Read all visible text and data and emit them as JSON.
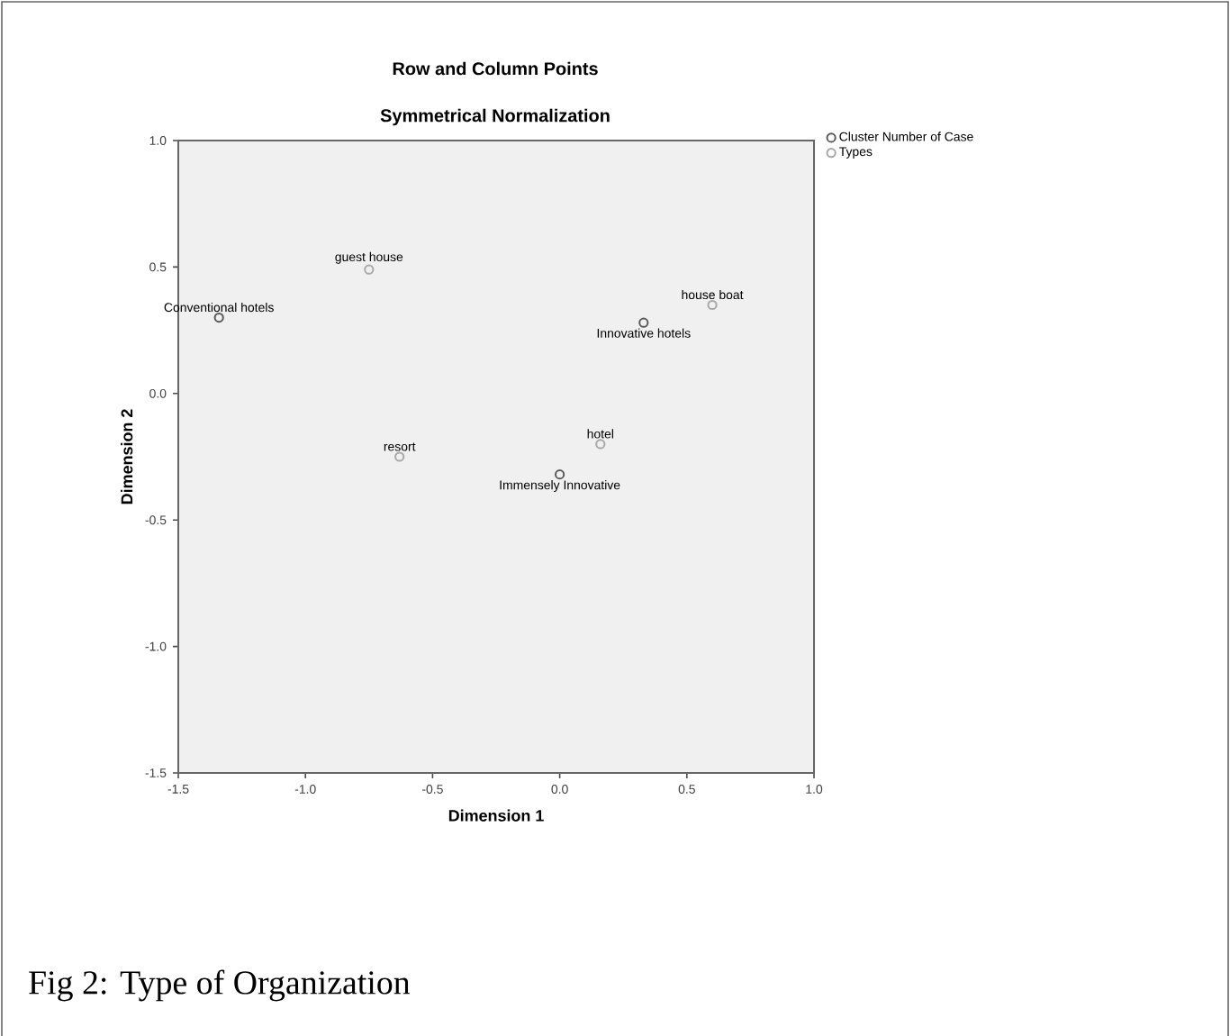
{
  "chart_data": {
    "type": "scatter",
    "title": "Row and Column Points",
    "subtitle": "Symmetrical Normalization",
    "xlabel": "Dimension 1",
    "ylabel": "Dimension 2",
    "xlim": [
      -1.5,
      1.0
    ],
    "ylim": [
      -1.5,
      1.0
    ],
    "xticks": [
      {
        "value": -1.5,
        "label": "-1.5"
      },
      {
        "value": -1.0,
        "label": "-1.0"
      },
      {
        "value": -0.5,
        "label": "-0.5"
      },
      {
        "value": 0.0,
        "label": "0.0"
      },
      {
        "value": 0.5,
        "label": "0.5"
      },
      {
        "value": 1.0,
        "label": "1.0"
      }
    ],
    "yticks": [
      {
        "value": -1.5,
        "label": "-1.5"
      },
      {
        "value": -1.0,
        "label": "-1.0"
      },
      {
        "value": -0.5,
        "label": "-0.5"
      },
      {
        "value": 0.0,
        "label": "0.0"
      },
      {
        "value": 0.5,
        "label": "0.5"
      },
      {
        "value": 1.0,
        "label": "1.0"
      }
    ],
    "series": [
      {
        "name": "Cluster Number of Case",
        "color": "#5a5a5a",
        "x": [
          -1.34,
          0.33,
          0.0
        ],
        "values": [
          0.3,
          0.28,
          -0.32
        ]
      },
      {
        "name": "Types",
        "color": "#a8a8a8",
        "x": [
          -0.75,
          0.6,
          -0.63,
          0.16
        ],
        "values": [
          0.49,
          0.35,
          -0.25,
          -0.2
        ]
      }
    ],
    "annotations": [
      {
        "text": "Conventional hotels",
        "x": -1.34,
        "y": 0.3
      },
      {
        "text": "guest house",
        "x": -0.75,
        "y": 0.49
      },
      {
        "text": "house boat",
        "x": 0.6,
        "y": 0.35
      },
      {
        "text": "Innovative hotels",
        "x": 0.33,
        "y": 0.28
      },
      {
        "text": "resort",
        "x": -0.63,
        "y": -0.25
      },
      {
        "text": "hotel",
        "x": 0.16,
        "y": -0.2
      },
      {
        "text": "Immensely Innovative",
        "x": 0.0,
        "y": -0.32
      },
      "Fig 2: Type of Organization"
    ],
    "marker": "circle",
    "grid": false,
    "legend": "top right"
  }
}
